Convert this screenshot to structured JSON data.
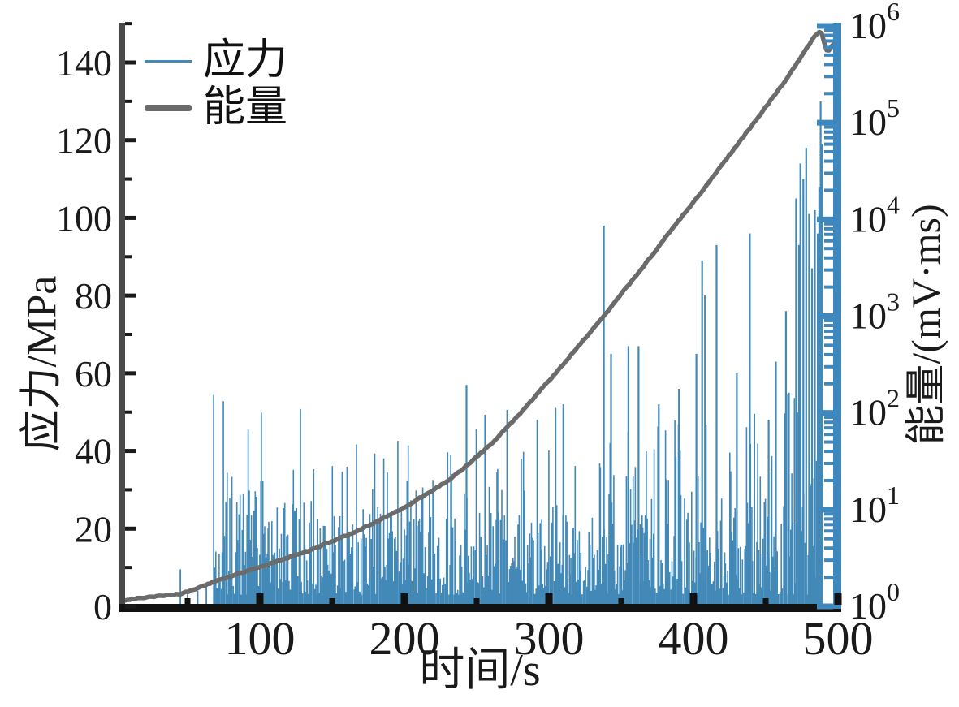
{
  "figure": {
    "background": "#ffffff",
    "legend": {
      "items": [
        {
          "label": "应力",
          "color": "#4289b8",
          "line_weight": "thin"
        },
        {
          "label": "能量",
          "color": "#6b6b6b",
          "line_weight": "thick"
        }
      ]
    },
    "axes": {
      "x": {
        "label": "时间/s",
        "min": 0,
        "max": 500,
        "major_ticks": [
          100,
          200,
          300,
          400,
          500
        ],
        "minor_ticks": [
          50,
          150,
          250,
          350,
          450
        ],
        "spine_color": "#121212"
      },
      "y_left": {
        "label": "应力/MPa",
        "min": 0,
        "max": 150,
        "major_ticks": [
          0,
          20,
          40,
          60,
          80,
          100,
          120,
          140
        ],
        "minor_step": 10,
        "spine_color": "#4a4a4a"
      },
      "y_right": {
        "label": "能量/(mV·ms)",
        "scale": "log",
        "tick_exponents": [
          0,
          1,
          2,
          3,
          4,
          5,
          6
        ],
        "spine_color": "#3f88bd"
      }
    }
  },
  "chart_data": {
    "type": "line",
    "title": "",
    "xlabel": "时间/s",
    "ylabel_left": "应力/MPa",
    "ylabel_right": "能量/(mV·ms)",
    "x_range": [
      0,
      500
    ],
    "y_left_range": [
      0,
      150
    ],
    "y_right_range_exp": [
      0,
      6
    ],
    "grid": false,
    "legend_position": "upper-left",
    "series": [
      {
        "name": "应力",
        "axis": "left",
        "style": "vertical-spikes",
        "color": "#4289b8",
        "units": "MPa",
        "pre_spikes": [
          [
            45,
            9.5
          ],
          [
            50,
            3.2
          ],
          [
            57,
            4.0
          ],
          [
            63,
            5.0
          ]
        ],
        "notable_spikes": [
          [
            243,
            57
          ],
          [
            310,
            52
          ],
          [
            338,
            98
          ],
          [
            343,
            65
          ],
          [
            355,
            67
          ],
          [
            362,
            67
          ],
          [
            376,
            52
          ],
          [
            390,
            56
          ],
          [
            402,
            65
          ],
          [
            406,
            89
          ],
          [
            408,
            80
          ],
          [
            416,
            93
          ],
          [
            430,
            60
          ],
          [
            439,
            96
          ],
          [
            452,
            48
          ],
          [
            457,
            63
          ],
          [
            464,
            76
          ],
          [
            466,
            55
          ],
          [
            471,
            105
          ],
          [
            473,
            93
          ],
          [
            474,
            114
          ],
          [
            476,
            110
          ],
          [
            478,
            118
          ],
          [
            480,
            101
          ],
          [
            482,
            87
          ],
          [
            484,
            102
          ],
          [
            486,
            96
          ],
          [
            487,
            108
          ],
          [
            488,
            130
          ],
          [
            489,
            119
          ]
        ],
        "background_segments": [
          {
            "t0": 68,
            "t1": 100,
            "base_max": 30,
            "tall_max": 55
          },
          {
            "t0": 100,
            "t1": 130,
            "base_max": 28,
            "tall_max": 53
          },
          {
            "t0": 130,
            "t1": 165,
            "base_max": 25,
            "tall_max": 45
          },
          {
            "t0": 165,
            "t1": 200,
            "base_max": 26,
            "tall_max": 47
          },
          {
            "t0": 200,
            "t1": 235,
            "base_max": 24,
            "tall_max": 42
          },
          {
            "t0": 235,
            "t1": 270,
            "base_max": 26,
            "tall_max": 50
          },
          {
            "t0": 270,
            "t1": 305,
            "base_max": 25,
            "tall_max": 52
          },
          {
            "t0": 305,
            "t1": 340,
            "base_max": 24,
            "tall_max": 47
          },
          {
            "t0": 340,
            "t1": 375,
            "base_max": 24,
            "tall_max": 46
          },
          {
            "t0": 375,
            "t1": 410,
            "base_max": 25,
            "tall_max": 48
          },
          {
            "t0": 410,
            "t1": 445,
            "base_max": 26,
            "tall_max": 50
          },
          {
            "t0": 445,
            "t1": 465,
            "base_max": 26,
            "tall_max": 50
          },
          {
            "t0": 465,
            "t1": 487,
            "base_max": 35,
            "tall_max": 60
          }
        ],
        "spike_density_per_s": 1.4,
        "seed": 7
      },
      {
        "name": "能量",
        "axis": "right",
        "style": "line",
        "color": "#6b6b6b",
        "units": "mV·ms",
        "points": [
          [
            5,
            1.15
          ],
          [
            15,
            1.2
          ],
          [
            25,
            1.25
          ],
          [
            35,
            1.3
          ],
          [
            45,
            1.35
          ],
          [
            55,
            1.5
          ],
          [
            62,
            1.65
          ],
          [
            70,
            1.85
          ],
          [
            80,
            2.05
          ],
          [
            90,
            2.3
          ],
          [
            100,
            2.55
          ],
          [
            110,
            2.85
          ],
          [
            120,
            3.2
          ],
          [
            130,
            3.6
          ],
          [
            140,
            4.1
          ],
          [
            150,
            4.7
          ],
          [
            160,
            5.4
          ],
          [
            170,
            6.3
          ],
          [
            180,
            7.4
          ],
          [
            190,
            8.8
          ],
          [
            200,
            10.5
          ],
          [
            210,
            13
          ],
          [
            220,
            16
          ],
          [
            230,
            20
          ],
          [
            240,
            26
          ],
          [
            250,
            35
          ],
          [
            260,
            48
          ],
          [
            270,
            68
          ],
          [
            280,
            98
          ],
          [
            290,
            145
          ],
          [
            300,
            215
          ],
          [
            310,
            320
          ],
          [
            320,
            480
          ],
          [
            330,
            720
          ],
          [
            340,
            1100
          ],
          [
            350,
            1700
          ],
          [
            360,
            2600
          ],
          [
            370,
            4000
          ],
          [
            380,
            6300
          ],
          [
            390,
            9800
          ],
          [
            400,
            15000
          ],
          [
            410,
            23500
          ],
          [
            420,
            37000
          ],
          [
            430,
            58000
          ],
          [
            440,
            92000
          ],
          [
            450,
            145000
          ],
          [
            460,
            230000
          ],
          [
            468,
            340000
          ],
          [
            474,
            470000
          ],
          [
            479,
            610000
          ],
          [
            483,
            750000
          ],
          [
            486,
            850000
          ],
          [
            488,
            890000
          ],
          [
            489,
            840000
          ],
          [
            490,
            720000
          ],
          [
            491,
            620000
          ],
          [
            492,
            570000
          ],
          [
            493,
            555000
          ],
          [
            494,
            565000
          ],
          [
            495,
            600000
          ],
          [
            496,
            630000
          ],
          [
            497,
            650000
          ],
          [
            498,
            640000
          ],
          [
            499,
            620000
          ],
          [
            500,
            615000
          ]
        ]
      }
    ]
  }
}
